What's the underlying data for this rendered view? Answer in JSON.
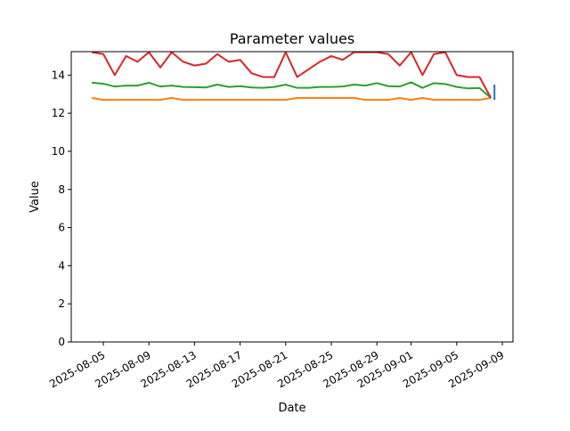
{
  "chart_data": {
    "type": "line",
    "title": "Parameter values",
    "xlabel": "Date",
    "ylabel": "Value",
    "ylim": [
      0,
      15.23
    ],
    "yticks": [
      0,
      2,
      4,
      6,
      8,
      10,
      12,
      14
    ],
    "xticks": [
      "2025-08-05",
      "2025-08-09",
      "2025-08-13",
      "2025-08-17",
      "2025-08-21",
      "2025-08-25",
      "2025-08-29",
      "2025-09-01",
      "2025-09-05",
      "2025-09-09"
    ],
    "grid": false,
    "x_start": "2025-08-04",
    "series": [
      {
        "color": "#1f77b4",
        "x": [
          "2025-09-08",
          "2025-09-08"
        ],
        "values": [
          13.5,
          12.7
        ]
      },
      {
        "color": "#ff7f0e",
        "values": [
          12.8,
          12.7,
          12.7,
          12.7,
          12.7,
          12.7,
          12.7,
          12.8,
          12.7,
          12.7,
          12.7,
          12.7,
          12.7,
          12.7,
          12.7,
          12.7,
          12.7,
          12.7,
          12.8,
          12.8,
          12.8,
          12.8,
          12.8,
          12.8,
          12.7,
          12.7,
          12.7,
          12.8,
          12.7,
          12.8,
          12.7,
          12.7,
          12.7,
          12.7,
          12.7,
          12.8
        ]
      },
      {
        "color": "#2ca02c",
        "values": [
          13.6,
          13.55,
          13.4,
          13.45,
          13.45,
          13.6,
          13.4,
          13.45,
          13.38,
          13.37,
          13.35,
          13.5,
          13.38,
          13.42,
          13.35,
          13.33,
          13.38,
          13.5,
          13.33,
          13.33,
          13.38,
          13.38,
          13.4,
          13.5,
          13.45,
          13.58,
          13.42,
          13.4,
          13.62,
          13.33,
          13.58,
          13.53,
          13.38,
          13.3,
          13.32,
          12.8
        ]
      },
      {
        "color": "#d62728",
        "values": [
          15.2,
          15.1,
          14.0,
          15.0,
          14.7,
          15.2,
          14.4,
          15.2,
          14.7,
          14.5,
          14.6,
          15.1,
          14.7,
          14.8,
          14.1,
          13.9,
          13.9,
          15.2,
          13.9,
          14.3,
          14.7,
          15.0,
          14.8,
          15.2,
          15.2,
          15.2,
          15.1,
          14.5,
          15.2,
          14.0,
          15.1,
          15.2,
          14.0,
          13.9,
          13.9,
          12.8
        ]
      }
    ]
  }
}
